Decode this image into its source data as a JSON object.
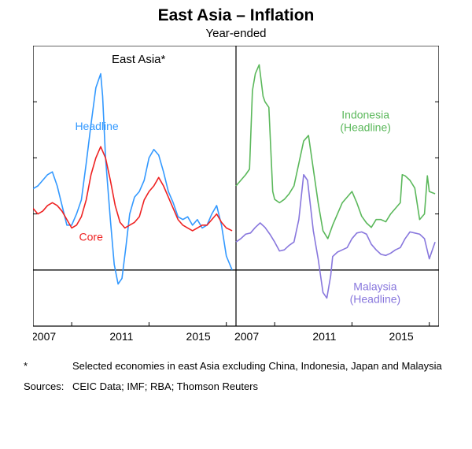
{
  "title": "East Asia – Inflation",
  "subtitle": "Year-ended",
  "footnote_mark": "*",
  "footnote_text": "Selected economies in east Asia excluding China, Indonesia, Japan and Malaysia",
  "sources_label": "Sources:",
  "sources_text": "CEIC Data; IMF; RBA; Thomson Reuters",
  "left_panel": {
    "title": "East Asia*",
    "title_fontsize": 15,
    "title_color": "#000000",
    "ylim": [
      -2,
      8
    ],
    "yticks": [
      -2,
      0,
      2,
      4,
      6
    ],
    "ymiss_top": 8,
    "xlim": [
      2005,
      2015.5
    ],
    "xticks": [
      2007,
      2011,
      2015
    ],
    "series": {
      "headline": {
        "label": "Headline",
        "label_pos": {
          "x": 2008.3,
          "y": 5.0
        },
        "color": "#3399ff",
        "width": 1.6,
        "data": [
          [
            2005.0,
            2.9
          ],
          [
            2005.25,
            3.0
          ],
          [
            2005.5,
            3.2
          ],
          [
            2005.75,
            3.4
          ],
          [
            2006.0,
            3.5
          ],
          [
            2006.25,
            3.0
          ],
          [
            2006.5,
            2.3
          ],
          [
            2006.75,
            1.6
          ],
          [
            2007.0,
            1.6
          ],
          [
            2007.25,
            2.0
          ],
          [
            2007.5,
            2.5
          ],
          [
            2007.75,
            3.8
          ],
          [
            2008.0,
            5.2
          ],
          [
            2008.25,
            6.5
          ],
          [
            2008.5,
            7.0
          ],
          [
            2008.6,
            6.2
          ],
          [
            2008.75,
            4.0
          ],
          [
            2009.0,
            1.8
          ],
          [
            2009.2,
            0.2
          ],
          [
            2009.4,
            -0.5
          ],
          [
            2009.6,
            -0.3
          ],
          [
            2009.8,
            0.8
          ],
          [
            2010.0,
            2.0
          ],
          [
            2010.25,
            2.6
          ],
          [
            2010.5,
            2.8
          ],
          [
            2010.75,
            3.2
          ],
          [
            2011.0,
            4.0
          ],
          [
            2011.25,
            4.3
          ],
          [
            2011.5,
            4.1
          ],
          [
            2011.75,
            3.5
          ],
          [
            2012.0,
            2.8
          ],
          [
            2012.25,
            2.4
          ],
          [
            2012.5,
            1.9
          ],
          [
            2012.75,
            1.8
          ],
          [
            2013.0,
            1.9
          ],
          [
            2013.25,
            1.6
          ],
          [
            2013.5,
            1.8
          ],
          [
            2013.75,
            1.5
          ],
          [
            2014.0,
            1.6
          ],
          [
            2014.25,
            2.0
          ],
          [
            2014.5,
            2.3
          ],
          [
            2014.75,
            1.6
          ],
          [
            2015.0,
            0.5
          ],
          [
            2015.3,
            0.0
          ]
        ]
      },
      "core": {
        "label": "Core",
        "label_pos": {
          "x": 2008.0,
          "y": 1.05
        },
        "color": "#ee2222",
        "width": 1.6,
        "data": [
          [
            2005.0,
            2.2
          ],
          [
            2005.25,
            2.0
          ],
          [
            2005.5,
            2.1
          ],
          [
            2005.75,
            2.3
          ],
          [
            2006.0,
            2.4
          ],
          [
            2006.25,
            2.3
          ],
          [
            2006.5,
            2.1
          ],
          [
            2006.75,
            1.8
          ],
          [
            2007.0,
            1.5
          ],
          [
            2007.25,
            1.6
          ],
          [
            2007.5,
            1.9
          ],
          [
            2007.75,
            2.5
          ],
          [
            2008.0,
            3.4
          ],
          [
            2008.25,
            4.0
          ],
          [
            2008.5,
            4.4
          ],
          [
            2008.75,
            4.0
          ],
          [
            2009.0,
            3.2
          ],
          [
            2009.25,
            2.3
          ],
          [
            2009.5,
            1.7
          ],
          [
            2009.75,
            1.5
          ],
          [
            2010.0,
            1.6
          ],
          [
            2010.25,
            1.7
          ],
          [
            2010.5,
            1.9
          ],
          [
            2010.75,
            2.5
          ],
          [
            2011.0,
            2.8
          ],
          [
            2011.25,
            3.0
          ],
          [
            2011.5,
            3.3
          ],
          [
            2011.75,
            3.0
          ],
          [
            2012.0,
            2.6
          ],
          [
            2012.25,
            2.2
          ],
          [
            2012.5,
            1.8
          ],
          [
            2012.75,
            1.6
          ],
          [
            2013.0,
            1.5
          ],
          [
            2013.25,
            1.4
          ],
          [
            2013.5,
            1.5
          ],
          [
            2013.75,
            1.6
          ],
          [
            2014.0,
            1.6
          ],
          [
            2014.25,
            1.8
          ],
          [
            2014.5,
            2.0
          ],
          [
            2014.75,
            1.7
          ],
          [
            2015.0,
            1.5
          ],
          [
            2015.3,
            1.4
          ]
        ]
      }
    }
  },
  "right_panel": {
    "ylim": [
      -5,
      20
    ],
    "yticks": [
      -5,
      0,
      5,
      10,
      15
    ],
    "ymiss_top": 20,
    "xlim": [
      2005,
      2015.5
    ],
    "xticks": [
      2007,
      2011,
      2015
    ],
    "series": {
      "indonesia": {
        "label": "Indonesia",
        "sublabel": "(Headline)",
        "label_pos": {
          "x": 2011.7,
          "y": 13.5
        },
        "color": "#5bb85b",
        "width": 1.6,
        "data": [
          [
            2005.0,
            7.5
          ],
          [
            2005.25,
            8.0
          ],
          [
            2005.5,
            8.5
          ],
          [
            2005.7,
            9.0
          ],
          [
            2005.85,
            16.0
          ],
          [
            2006.0,
            17.5
          ],
          [
            2006.2,
            18.3
          ],
          [
            2006.4,
            15.5
          ],
          [
            2006.5,
            15.0
          ],
          [
            2006.7,
            14.5
          ],
          [
            2006.9,
            7.0
          ],
          [
            2007.0,
            6.3
          ],
          [
            2007.25,
            6.0
          ],
          [
            2007.5,
            6.3
          ],
          [
            2007.75,
            6.8
          ],
          [
            2008.0,
            7.5
          ],
          [
            2008.25,
            9.5
          ],
          [
            2008.5,
            11.5
          ],
          [
            2008.75,
            12.0
          ],
          [
            2009.0,
            9.0
          ],
          [
            2009.25,
            6.0
          ],
          [
            2009.5,
            3.5
          ],
          [
            2009.75,
            2.8
          ],
          [
            2010.0,
            4.0
          ],
          [
            2010.25,
            5.0
          ],
          [
            2010.5,
            6.0
          ],
          [
            2010.75,
            6.5
          ],
          [
            2011.0,
            7.0
          ],
          [
            2011.25,
            6.0
          ],
          [
            2011.5,
            4.8
          ],
          [
            2011.75,
            4.2
          ],
          [
            2012.0,
            3.8
          ],
          [
            2012.25,
            4.5
          ],
          [
            2012.5,
            4.5
          ],
          [
            2012.75,
            4.3
          ],
          [
            2013.0,
            5.0
          ],
          [
            2013.25,
            5.5
          ],
          [
            2013.5,
            6.0
          ],
          [
            2013.6,
            8.5
          ],
          [
            2013.75,
            8.4
          ],
          [
            2014.0,
            8.0
          ],
          [
            2014.25,
            7.3
          ],
          [
            2014.5,
            4.5
          ],
          [
            2014.75,
            5.0
          ],
          [
            2014.9,
            8.4
          ],
          [
            2015.0,
            7.0
          ],
          [
            2015.3,
            6.8
          ]
        ]
      },
      "malaysia": {
        "label": "Malaysia",
        "sublabel": "(Headline)",
        "label_pos": {
          "x": 2012.2,
          "y": -1.8
        },
        "color": "#8877dd",
        "width": 1.6,
        "data": [
          [
            2005.0,
            2.5
          ],
          [
            2005.25,
            2.8
          ],
          [
            2005.5,
            3.2
          ],
          [
            2005.75,
            3.3
          ],
          [
            2006.0,
            3.8
          ],
          [
            2006.25,
            4.2
          ],
          [
            2006.5,
            3.8
          ],
          [
            2006.75,
            3.2
          ],
          [
            2007.0,
            2.5
          ],
          [
            2007.25,
            1.7
          ],
          [
            2007.5,
            1.8
          ],
          [
            2007.75,
            2.2
          ],
          [
            2008.0,
            2.5
          ],
          [
            2008.25,
            4.5
          ],
          [
            2008.5,
            8.5
          ],
          [
            2008.7,
            8.0
          ],
          [
            2008.9,
            5.0
          ],
          [
            2009.0,
            3.5
          ],
          [
            2009.25,
            1.0
          ],
          [
            2009.5,
            -2.0
          ],
          [
            2009.7,
            -2.5
          ],
          [
            2009.9,
            -0.5
          ],
          [
            2010.0,
            1.2
          ],
          [
            2010.25,
            1.6
          ],
          [
            2010.5,
            1.8
          ],
          [
            2010.75,
            2.0
          ],
          [
            2011.0,
            2.8
          ],
          [
            2011.25,
            3.3
          ],
          [
            2011.5,
            3.4
          ],
          [
            2011.75,
            3.2
          ],
          [
            2012.0,
            2.3
          ],
          [
            2012.25,
            1.8
          ],
          [
            2012.5,
            1.4
          ],
          [
            2012.75,
            1.3
          ],
          [
            2013.0,
            1.5
          ],
          [
            2013.25,
            1.8
          ],
          [
            2013.5,
            2.0
          ],
          [
            2013.75,
            2.8
          ],
          [
            2014.0,
            3.4
          ],
          [
            2014.25,
            3.3
          ],
          [
            2014.5,
            3.2
          ],
          [
            2014.75,
            2.8
          ],
          [
            2015.0,
            1.0
          ],
          [
            2015.3,
            2.5
          ]
        ]
      }
    }
  },
  "axis_fontsize": 14,
  "label_fontsize": 14,
  "y_unit": "%",
  "background_color": "#ffffff",
  "border_color": "#000000",
  "zero_line_width": 1.3
}
